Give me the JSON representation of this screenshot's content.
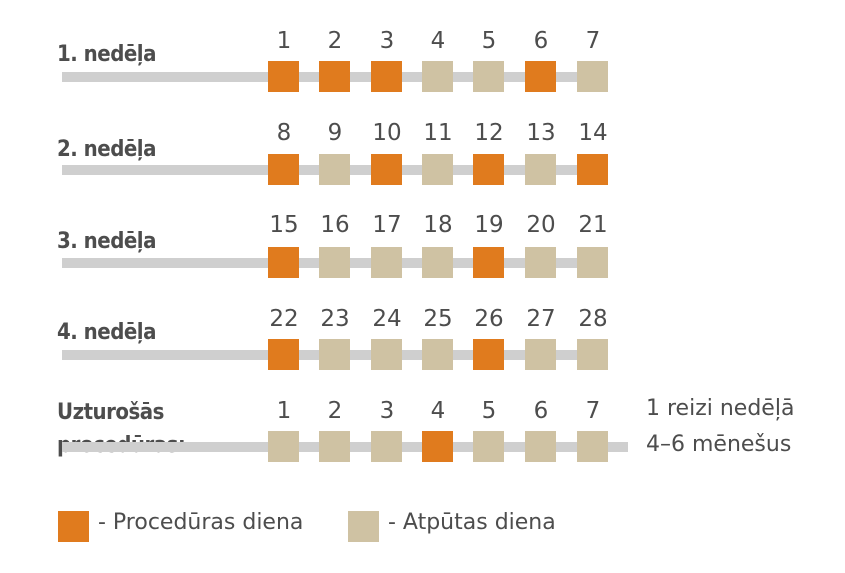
{
  "colors": {
    "procedure": "#e07b1e",
    "rest": "#cfc2a3",
    "track": "#cfcfcf",
    "text": "#4d4d4d"
  },
  "rows": [
    {
      "label": "1. nedēļa",
      "days": [
        "1",
        "2",
        "3",
        "4",
        "5",
        "6",
        "7"
      ],
      "procedure": [
        true,
        true,
        true,
        false,
        false,
        true,
        false
      ]
    },
    {
      "label": "2. nedēļa",
      "days": [
        "8",
        "9",
        "10",
        "11",
        "12",
        "13",
        "14"
      ],
      "procedure": [
        true,
        false,
        true,
        false,
        true,
        false,
        true
      ]
    },
    {
      "label": "3. nedēļa",
      "days": [
        "15",
        "16",
        "17",
        "18",
        "19",
        "20",
        "21"
      ],
      "procedure": [
        true,
        false,
        false,
        false,
        true,
        false,
        false
      ]
    },
    {
      "label": "4. nedēļa",
      "days": [
        "22",
        "23",
        "24",
        "25",
        "26",
        "27",
        "28"
      ],
      "procedure": [
        true,
        false,
        false,
        false,
        true,
        false,
        false
      ]
    },
    {
      "label_line1": "Uzturošās",
      "label_line2": "procedūras:",
      "days": [
        "1",
        "2",
        "3",
        "4",
        "5",
        "6",
        "7"
      ],
      "procedure": [
        false,
        false,
        false,
        true,
        false,
        false,
        false
      ]
    }
  ],
  "maintenance_note": {
    "line1": "1 reizi nedēļā",
    "line2": "4–6 mēnešus"
  },
  "legend": {
    "procedure_label": "- Procedūras diena",
    "rest_label": "- Atpūtas diena"
  }
}
